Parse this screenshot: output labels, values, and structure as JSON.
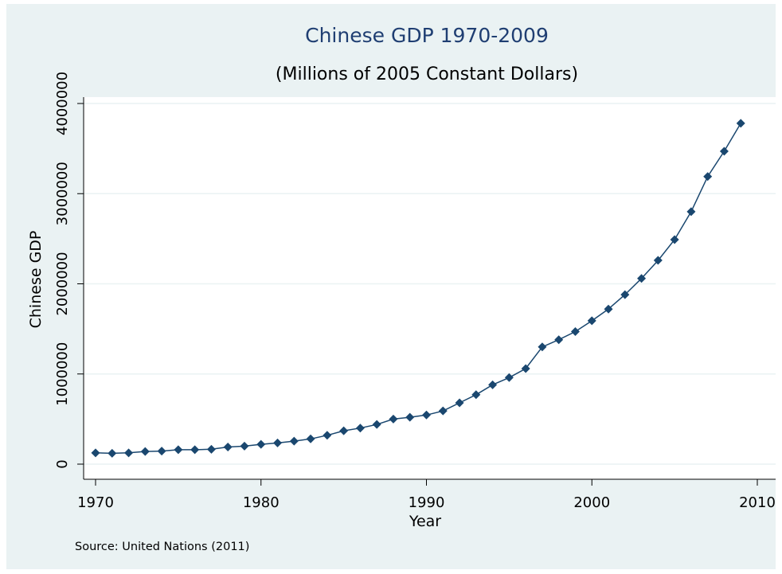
{
  "chart_data": {
    "type": "line",
    "title": "Chinese GDP 1970-2009",
    "subtitle": "(Millions of 2005 Constant Dollars)",
    "xlabel": "Year",
    "ylabel": "Chinese GDP",
    "note": "Source: United Nations (2011)",
    "xlim": [
      1970,
      2010
    ],
    "ylim": [
      0,
      4000000
    ],
    "x_ticks": [
      1970,
      1980,
      1990,
      2000,
      2010
    ],
    "y_ticks": [
      0,
      1000000,
      2000000,
      3000000,
      4000000
    ],
    "grid": true,
    "marker": "diamond",
    "colors": {
      "background": "#eaf2f3",
      "plot_area": "#ffffff",
      "series": "#1a476f",
      "title": "#1f3e72",
      "grid": "#eaf2f3"
    },
    "x": [
      1970,
      1971,
      1972,
      1973,
      1974,
      1975,
      1976,
      1977,
      1978,
      1979,
      1980,
      1981,
      1982,
      1983,
      1984,
      1985,
      1986,
      1987,
      1988,
      1989,
      1990,
      1991,
      1992,
      1993,
      1994,
      1995,
      1996,
      1997,
      1998,
      1999,
      2000,
      2001,
      2002,
      2003,
      2004,
      2005,
      2006,
      2007,
      2008,
      2009
    ],
    "y": [
      125000,
      120000,
      125000,
      140000,
      145000,
      160000,
      160000,
      165000,
      190000,
      200000,
      220000,
      235000,
      255000,
      280000,
      320000,
      370000,
      400000,
      440000,
      500000,
      520000,
      545000,
      590000,
      680000,
      770000,
      880000,
      960000,
      1060000,
      1300000,
      1380000,
      1470000,
      1590000,
      1720000,
      1880000,
      2060000,
      2260000,
      2490000,
      2800000,
      3190000,
      3470000,
      3780000
    ]
  }
}
